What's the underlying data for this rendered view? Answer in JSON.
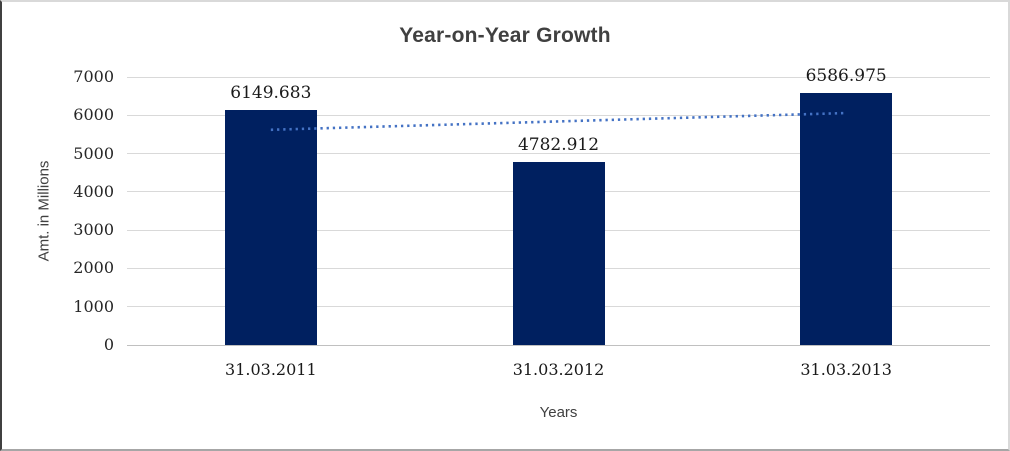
{
  "chart_data": {
    "type": "bar",
    "title": "Year-on-Year Growth",
    "xlabel": "Years",
    "ylabel": "Amt. in Millions",
    "categories": [
      "31.03.2011",
      "31.03.2012",
      "31.03.2013"
    ],
    "values": [
      6149.683,
      4782.912,
      6586.975
    ],
    "data_labels": [
      "6149.683",
      "4782.912",
      "6586.975"
    ],
    "ylim": [
      0,
      7000
    ],
    "yticks": [
      0,
      1000,
      2000,
      3000,
      4000,
      5000,
      6000,
      7000
    ],
    "grid": "horizontal",
    "legend": "none",
    "bar_color": "#002060",
    "trendline": {
      "type": "linear",
      "style": "dotted",
      "color": "#4472C4"
    },
    "colors": {
      "title_text": "#404040",
      "axis_title_text": "#404040",
      "tick_text": "#262626",
      "gridline": "#d9d9d9",
      "axis_line": "#c0c0c0",
      "frame_border": "#d9d9d9"
    }
  }
}
